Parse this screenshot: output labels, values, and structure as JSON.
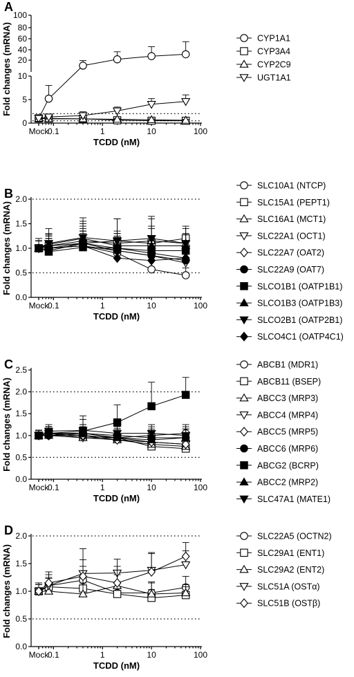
{
  "chart_data": [
    {
      "panel": "A",
      "type": "line",
      "xlabel": "TCDD (nM)",
      "ylabel": "Fold changes (mRNA)",
      "x_ticks": [
        "Mock",
        "0.1",
        "1",
        "10",
        "100"
      ],
      "y_ticks": [
        "0",
        "5",
        "10",
        "20",
        "40",
        "60",
        "80",
        "100"
      ],
      "axis_break": true,
      "reference_lines": [
        0.5,
        2.0
      ],
      "x": [
        "Mock",
        0.08,
        0.4,
        2,
        10,
        50
      ],
      "series": [
        {
          "name": "CYP1A1",
          "marker": "circle-open",
          "values": [
            1.0,
            5.2,
            20.0,
            30.0,
            35.0,
            38.0
          ],
          "error": [
            0.3,
            2.8,
            8.0,
            12.0,
            15.0,
            20.0
          ]
        },
        {
          "name": "CYP3A4",
          "marker": "square-open",
          "values": [
            1.0,
            1.0,
            0.9,
            0.6,
            0.5,
            0.5
          ],
          "error": [
            0.2,
            0.3,
            0.3,
            0.2,
            0.2,
            0.2
          ]
        },
        {
          "name": "CYP2C9",
          "marker": "triangle-up-open",
          "values": [
            1.0,
            0.9,
            0.9,
            0.8,
            0.7,
            0.6
          ],
          "error": [
            0.2,
            0.3,
            0.3,
            0.2,
            0.2,
            0.2
          ]
        },
        {
          "name": "UGT1A1",
          "marker": "triangle-down-open",
          "values": [
            1.0,
            1.3,
            1.6,
            2.6,
            4.0,
            4.6
          ],
          "error": [
            0.2,
            0.5,
            0.8,
            0.8,
            1.2,
            1.4
          ]
        }
      ]
    },
    {
      "panel": "B",
      "type": "line",
      "xlabel": "TCDD (nM)",
      "ylabel": "Fold changes (mRNA)",
      "x_ticks": [
        "Mock",
        "0.1",
        "1",
        "10",
        "100"
      ],
      "y_ticks": [
        "0.0",
        "0.5",
        "1.0",
        "1.5",
        "2.0"
      ],
      "ylim": [
        0,
        2.0
      ],
      "reference_lines": [
        0.5,
        2.0
      ],
      "x": [
        "Mock",
        0.08,
        0.4,
        2,
        10,
        50
      ],
      "series": [
        {
          "name": "SLC10A1 (NTCP)",
          "marker": "circle-open",
          "values": [
            1.0,
            1.0,
            1.05,
            0.9,
            0.57,
            0.45
          ],
          "error": [
            0.15,
            0.25,
            0.3,
            0.25,
            0.2,
            0.15
          ]
        },
        {
          "name": "SLC15A1 (PEPT1)",
          "marker": "square-open",
          "values": [
            1.0,
            1.05,
            1.1,
            1.15,
            1.1,
            1.2
          ],
          "error": [
            0.2,
            0.25,
            0.4,
            0.45,
            0.5,
            0.25
          ]
        },
        {
          "name": "SLC16A1 (MCT1)",
          "marker": "triangle-up-open",
          "values": [
            1.0,
            1.05,
            1.15,
            1.1,
            1.15,
            1.1
          ],
          "error": [
            0.15,
            0.2,
            0.3,
            0.25,
            0.3,
            0.2
          ]
        },
        {
          "name": "SLC22A1 (OCT1)",
          "marker": "triangle-down-open",
          "values": [
            1.0,
            1.0,
            1.05,
            0.95,
            0.85,
            0.7
          ],
          "error": [
            0.15,
            0.2,
            0.3,
            0.3,
            0.3,
            0.25
          ]
        },
        {
          "name": "SLC22A7 (OAT2)",
          "marker": "diamond-open",
          "values": [
            1.0,
            0.95,
            1.1,
            1.0,
            0.9,
            0.8
          ],
          "error": [
            0.15,
            0.2,
            0.3,
            0.3,
            0.3,
            0.2
          ]
        },
        {
          "name": "SLC22A9 (OAT7)",
          "marker": "circle-filled",
          "values": [
            1.0,
            1.0,
            1.1,
            0.95,
            0.85,
            0.75
          ],
          "error": [
            0.15,
            0.2,
            0.25,
            0.25,
            0.25,
            0.2
          ]
        },
        {
          "name": "SLCO1B1 (OATP1B1)",
          "marker": "square-filled",
          "values": [
            1.0,
            0.93,
            1.02,
            1.0,
            0.95,
            0.95
          ],
          "error": [
            0.15,
            0.2,
            0.25,
            0.2,
            0.25,
            0.2
          ]
        },
        {
          "name": "SLCO1B3 (OATP1B3)",
          "marker": "triangle-up-filled",
          "values": [
            1.0,
            1.08,
            1.2,
            1.05,
            1.05,
            1.05
          ],
          "error": [
            0.15,
            0.2,
            0.35,
            0.25,
            0.35,
            0.25
          ]
        },
        {
          "name": "SLCO2B1 (OATP2B1)",
          "marker": "triangle-down-filled",
          "values": [
            1.0,
            1.1,
            1.22,
            1.15,
            1.2,
            1.1
          ],
          "error": [
            0.15,
            0.3,
            0.4,
            0.45,
            0.45,
            0.3
          ]
        },
        {
          "name": "SLCO4C1 (OATP4C1)",
          "marker": "diamond-filled",
          "values": [
            1.0,
            1.0,
            1.05,
            0.8,
            0.75,
            0.8
          ],
          "error": [
            0.15,
            0.2,
            0.25,
            0.2,
            0.2,
            0.2
          ]
        }
      ]
    },
    {
      "panel": "C",
      "type": "line",
      "xlabel": "TCDD (nM)",
      "ylabel": "Fold changes (mRNA)",
      "x_ticks": [
        "Mock",
        "0.1",
        "1",
        "10",
        "100"
      ],
      "y_ticks": [
        "0.0",
        "0.5",
        "1.0",
        "1.5",
        "2.0",
        "2.5"
      ],
      "ylim": [
        0,
        2.5
      ],
      "reference_lines": [
        0.5,
        2.0
      ],
      "x": [
        "Mock",
        0.08,
        0.4,
        2,
        10,
        50
      ],
      "series": [
        {
          "name": "ABCB1 (MDR1)",
          "marker": "circle-open",
          "values": [
            1.0,
            1.05,
            1.05,
            0.95,
            1.0,
            1.05
          ],
          "error": [
            0.12,
            0.15,
            0.2,
            0.2,
            0.2,
            0.2
          ]
        },
        {
          "name": "ABCB11 (BSEP)",
          "marker": "square-open",
          "values": [
            1.0,
            1.05,
            1.0,
            0.95,
            0.75,
            0.7
          ],
          "error": [
            0.12,
            0.15,
            0.2,
            0.2,
            0.2,
            0.2
          ]
        },
        {
          "name": "ABCC3 (MRP3)",
          "marker": "triangle-up-open",
          "values": [
            1.0,
            1.0,
            0.95,
            0.9,
            0.8,
            0.75
          ],
          "error": [
            0.12,
            0.15,
            0.2,
            0.2,
            0.2,
            0.2
          ]
        },
        {
          "name": "ABCC4 (MRP4)",
          "marker": "triangle-down-open",
          "values": [
            1.0,
            1.05,
            0.95,
            0.95,
            0.85,
            0.8
          ],
          "error": [
            0.12,
            0.15,
            0.2,
            0.2,
            0.2,
            0.2
          ]
        },
        {
          "name": "ABCC5 (MRP5)",
          "marker": "diamond-open",
          "values": [
            1.0,
            1.0,
            1.0,
            0.9,
            0.85,
            0.8
          ],
          "error": [
            0.12,
            0.15,
            0.2,
            0.2,
            0.2,
            0.2
          ]
        },
        {
          "name": "ABCC6 (MRP6)",
          "marker": "circle-filled",
          "values": [
            1.0,
            1.0,
            1.05,
            1.0,
            0.95,
            0.95
          ],
          "error": [
            0.12,
            0.15,
            0.2,
            0.2,
            0.2,
            0.2
          ]
        },
        {
          "name": "ABCG2 (BCRP)",
          "marker": "square-filled",
          "values": [
            1.0,
            1.05,
            1.1,
            1.3,
            1.67,
            1.93
          ],
          "error": [
            0.12,
            0.15,
            0.35,
            0.4,
            0.55,
            0.4
          ]
        },
        {
          "name": "ABCC2 (MRP2)",
          "marker": "triangle-up-filled",
          "values": [
            1.0,
            1.05,
            1.05,
            0.95,
            0.9,
            0.95
          ],
          "error": [
            0.12,
            0.15,
            0.2,
            0.2,
            0.2,
            0.2
          ]
        },
        {
          "name": "SLC47A1 (MATE1)",
          "marker": "triangle-down-filled",
          "values": [
            1.0,
            1.1,
            1.12,
            1.05,
            1.05,
            1.0
          ],
          "error": [
            0.12,
            0.15,
            0.25,
            0.25,
            0.2,
            0.2
          ]
        }
      ]
    },
    {
      "panel": "D",
      "type": "line",
      "xlabel": "TCDD (nM)",
      "ylabel": "Fold changes (mRNA)",
      "x_ticks": [
        "Mock",
        "0.1",
        "1",
        "10",
        "100"
      ],
      "y_ticks": [
        "0.0",
        "0.5",
        "1.0",
        "1.5",
        "2.0"
      ],
      "ylim": [
        0,
        2.0
      ],
      "reference_lines": [
        0.5,
        2.0
      ],
      "x": [
        "Mock",
        0.08,
        0.4,
        2,
        10,
        50
      ],
      "series": [
        {
          "name": "SLC22A5 (OCTN2)",
          "marker": "circle-open",
          "values": [
            1.0,
            1.1,
            1.2,
            0.97,
            0.97,
            1.07
          ],
          "error": [
            0.12,
            0.15,
            0.25,
            0.2,
            0.2,
            0.2
          ]
        },
        {
          "name": "SLC29A1 (ENT1)",
          "marker": "square-open",
          "values": [
            1.0,
            1.08,
            1.05,
            0.95,
            0.88,
            0.93
          ],
          "error": [
            0.12,
            0.15,
            0.2,
            0.2,
            0.15,
            0.15
          ]
        },
        {
          "name": "SLC29A2 (ENT2)",
          "marker": "triangle-up-open",
          "values": [
            1.0,
            1.0,
            0.95,
            1.1,
            0.95,
            0.97
          ],
          "error": [
            0.12,
            0.15,
            0.2,
            0.2,
            0.2,
            0.15
          ]
        },
        {
          "name": "SLC51A (OSTα)",
          "marker": "triangle-down-open",
          "values": [
            1.0,
            1.1,
            1.32,
            1.33,
            1.38,
            1.48
          ],
          "error": [
            0.15,
            0.2,
            0.45,
            0.25,
            0.3,
            0.25
          ]
        },
        {
          "name": "SLC51B (OSTβ)",
          "marker": "diamond-open",
          "values": [
            1.0,
            1.15,
            1.27,
            1.15,
            1.35,
            1.63
          ],
          "error": [
            0.15,
            0.2,
            0.3,
            0.3,
            0.35,
            0.25
          ]
        }
      ]
    }
  ]
}
